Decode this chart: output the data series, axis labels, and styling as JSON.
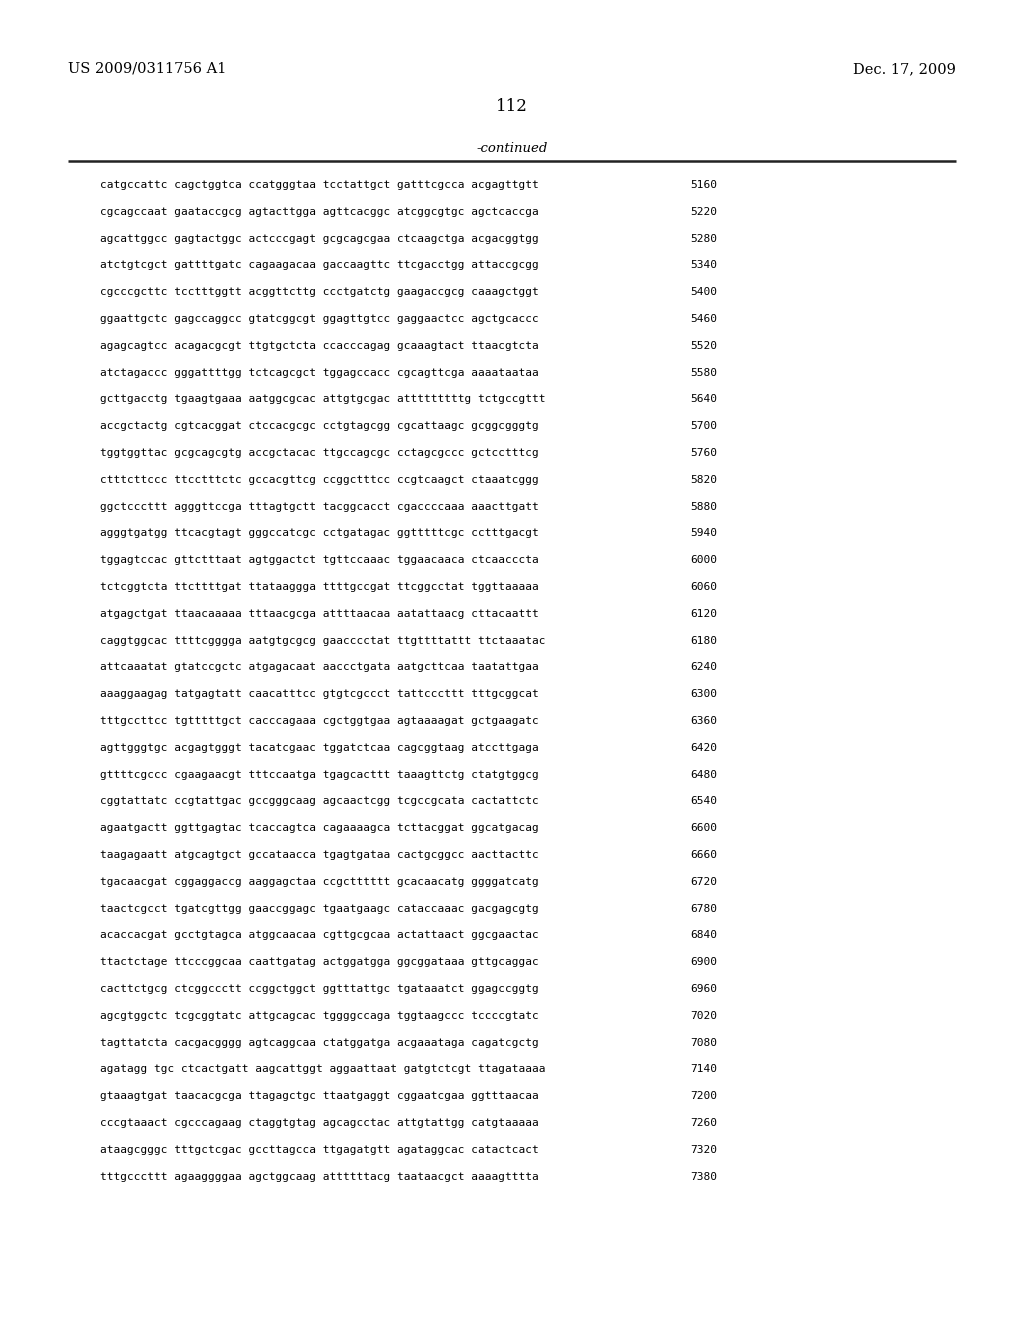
{
  "header_left": "US 2009/0311756 A1",
  "header_right": "Dec. 17, 2009",
  "page_number": "112",
  "continued_label": "-continued",
  "background_color": "#ffffff",
  "text_color": "#000000",
  "font_size": 8.0,
  "header_font_size": 10.5,
  "page_num_font_size": 12,
  "continued_font_size": 9.5,
  "sequence_lines": [
    [
      "catgccattc cagctggtca ccatgggtaa tcctattgct gatttcgcca acgagttgtt",
      "5160"
    ],
    [
      "cgcagccaat gaataccgcg agtacttgga agttcacggc atcggcgtgc agctcaccga",
      "5220"
    ],
    [
      "agcattggcc gagtactggc actcccgagt gcgcagcgaa ctcaagctga acgacggtgg",
      "5280"
    ],
    [
      "atctgtcgct gattttgatc cagaagacaa gaccaagttc ttcgacctgg attaccgcgg",
      "5340"
    ],
    [
      "cgcccgcttc tcctttggtt acggttcttg ccctgatctg gaagaccgcg caaagctggt",
      "5400"
    ],
    [
      "ggaattgctc gagccaggcc gtatcggcgt ggagttgtcc gaggaactcc agctgcaccc",
      "5460"
    ],
    [
      "agagcagtcc acagacgcgt ttgtgctcta ccacccagag gcaaagtact ttaacgtcta",
      "5520"
    ],
    [
      "atctagaccc gggattttgg tctcagcgct tggagccacc cgcagttcga aaaataataa",
      "5580"
    ],
    [
      "gcttgacctg tgaagtgaaa aatggcgcac attgtgcgac atttttttttg tctgccgttt",
      "5640"
    ],
    [
      "accgctactg cgtcacggat ctccacgcgc cctgtagcgg cgcattaagc gcggcgggtg",
      "5700"
    ],
    [
      "tggtggttac gcgcagcgtg accgctacac ttgccagcgc cctagcgccc gctcctttcg",
      "5760"
    ],
    [
      "ctttcttccc ttcctttctc gccacgttcg ccggctttcc ccgtcaagct ctaaatcggg",
      "5820"
    ],
    [
      "ggctcccttt agggttccga tttagtgctt tacggcacct cgaccccaaa aaacttgatt",
      "5880"
    ],
    [
      "agggtgatgg ttcacgtagt gggccatcgc cctgatagac ggtttttcgc cctttgacgt",
      "5940"
    ],
    [
      "tggagtccac gttctttaat agtggactct tgttccaaac tggaacaaca ctcaacccta",
      "6000"
    ],
    [
      "tctcggtcta ttcttttgat ttataaggga ttttgccgat ttcggcctat tggttaaaaa",
      "6060"
    ],
    [
      "atgagctgat ttaacaaaaa tttaacgcga attttaacaa aatattaacg cttacaattt",
      "6120"
    ],
    [
      "caggtggcac ttttcgggga aatgtgcgcg gaacccctat ttgttttattt ttctaaatac",
      "6180"
    ],
    [
      "attcaaatat gtatccgctc atgagacaat aaccctgata aatgcttcaa taatattgaa",
      "6240"
    ],
    [
      "aaaggaagag tatgagtatt caacatttcc gtgtcgccct tattcccttt tttgcggcat",
      "6300"
    ],
    [
      "tttgccttcc tgtttttgct cacccagaaa cgctggtgaa agtaaaagat gctgaagatc",
      "6360"
    ],
    [
      "agttgggtgc acgagtgggt tacatcgaac tggatctcaa cagcggtaag atccttgaga",
      "6420"
    ],
    [
      "gttttcgccc cgaagaacgt tttccaatga tgagcacttt taaagttctg ctatgtggcg",
      "6480"
    ],
    [
      "cggtattatc ccgtattgac gccgggcaag agcaactcgg tcgccgcata cactattctc",
      "6540"
    ],
    [
      "agaatgactt ggttgagtac tcaccagtca cagaaaagca tcttacggat ggcatgacag",
      "6600"
    ],
    [
      "taagagaatt atgcagtgct gccataacca tgagtgataa cactgcggcc aacttacttc",
      "6660"
    ],
    [
      "tgacaacgat cggaggaccg aaggagctaa ccgctttttt gcacaacatg ggggatcatg",
      "6720"
    ],
    [
      "taactcgcct tgatcgttgg gaaccggagc tgaatgaagc cataccaaac gacgagcgtg",
      "6780"
    ],
    [
      "acaccacgat gcctgtagca atggcaacaa cgttgcgcaa actattaact ggcgaactac",
      "6840"
    ],
    [
      "ttactctage ttcccggcaa caattgatag actggatgga ggcggataaа gttgcaggac",
      "6900"
    ],
    [
      "cacttctgcg ctcggccctt ccggctggct ggtttattgc tgataaatct ggagccggtg",
      "6960"
    ],
    [
      "agcgtggctc tcgcggtatc attgcagcac tggggccaga tggtaagccc tccccgtatc",
      "7020"
    ],
    [
      "tagttatcta cacgacgggg agtcaggcaa ctatggatga acgaaataga cagatcgctg",
      "7080"
    ],
    [
      "agatagg tgc ctcactgatt aagcattggt aggaattaat gatgtctcgt ttagataaaa",
      "7140"
    ],
    [
      "gtaaagtgat taacacgcga ttagagctgc ttaatgaggt cggaatcgaa ggtttaacaa",
      "7200"
    ],
    [
      "cccgtaaact cgcccagaag ctaggtgtag agcagcctac attgtattgg catgtaaaaa",
      "7260"
    ],
    [
      "ataagcgggc tttgctcgac gccttagcca ttgagatgtt agataggcac catactcact",
      "7320"
    ],
    [
      "tttgcccttt agaaggggaa agctggcaag attttttacg taataacgct aaaagtttta",
      "7380"
    ]
  ]
}
